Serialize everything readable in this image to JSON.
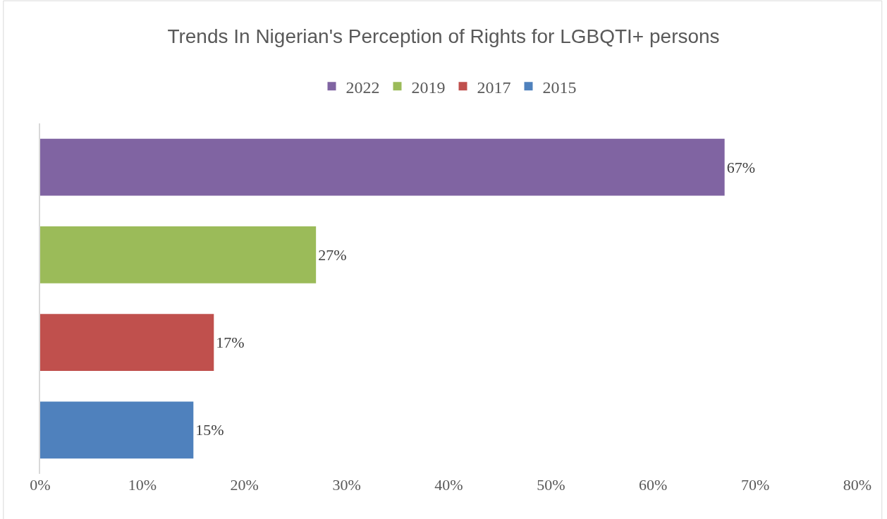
{
  "chart_data": {
    "type": "bar",
    "orientation": "horizontal",
    "title": "Trends In Nigerian's Perception of Rights for LGBQTI+ persons",
    "categories": [
      null,
      null,
      null,
      null
    ],
    "series": [
      {
        "name": "2022",
        "color": "#8064a2",
        "values": [
          67,
          null,
          null,
          null
        ],
        "value_labels": [
          "67%",
          null,
          null,
          null
        ]
      },
      {
        "name": "2019",
        "color": "#9bbb59",
        "values": [
          null,
          27,
          null,
          null
        ],
        "value_labels": [
          null,
          "27%",
          null,
          null
        ]
      },
      {
        "name": "2017",
        "color": "#c0504d",
        "values": [
          null,
          null,
          17,
          null
        ],
        "value_labels": [
          null,
          null,
          "17%",
          null
        ]
      },
      {
        "name": "2015",
        "color": "#4f81bd",
        "values": [
          null,
          null,
          null,
          15
        ],
        "value_labels": [
          null,
          null,
          null,
          "15%"
        ]
      }
    ],
    "xlim": [
      0,
      80
    ],
    "xticks": [
      {
        "value": 0,
        "label": "0%"
      },
      {
        "value": 10,
        "label": "10%"
      },
      {
        "value": 20,
        "label": "20%"
      },
      {
        "value": 30,
        "label": "30%"
      },
      {
        "value": 40,
        "label": "40%"
      },
      {
        "value": 50,
        "label": "50%"
      },
      {
        "value": 60,
        "label": "60%"
      },
      {
        "value": 70,
        "label": "70%"
      },
      {
        "value": 80,
        "label": "80%"
      }
    ],
    "legend": "top",
    "tick_labels": "x"
  }
}
